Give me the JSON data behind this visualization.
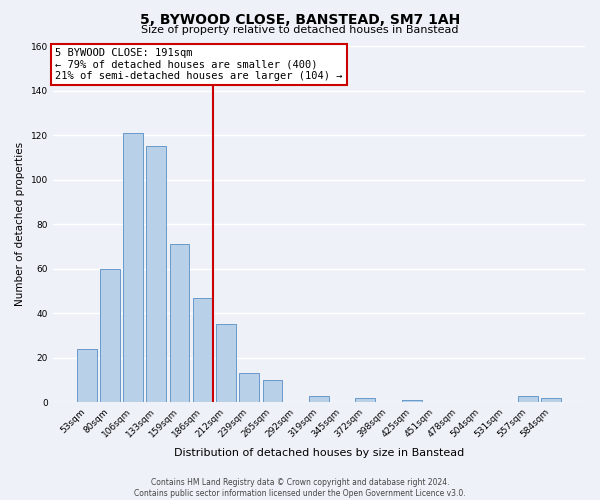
{
  "title": "5, BYWOOD CLOSE, BANSTEAD, SM7 1AH",
  "subtitle": "Size of property relative to detached houses in Banstead",
  "xlabel": "Distribution of detached houses by size in Banstead",
  "ylabel": "Number of detached properties",
  "bar_labels": [
    "53sqm",
    "80sqm",
    "106sqm",
    "133sqm",
    "159sqm",
    "186sqm",
    "212sqm",
    "239sqm",
    "265sqm",
    "292sqm",
    "319sqm",
    "345sqm",
    "372sqm",
    "398sqm",
    "425sqm",
    "451sqm",
    "478sqm",
    "504sqm",
    "531sqm",
    "557sqm",
    "584sqm"
  ],
  "bar_values": [
    24,
    60,
    121,
    115,
    71,
    47,
    35,
    13,
    10,
    0,
    3,
    0,
    2,
    0,
    1,
    0,
    0,
    0,
    0,
    3,
    2
  ],
  "bar_color": "#b8d0e8",
  "bar_edge_color": "#6699cc",
  "ylim": [
    0,
    160
  ],
  "yticks": [
    0,
    20,
    40,
    60,
    80,
    100,
    120,
    140,
    160
  ],
  "property_line_color": "#cc0000",
  "annotation_title": "5 BYWOOD CLOSE: 191sqm",
  "annotation_line1": "← 79% of detached houses are smaller (400)",
  "annotation_line2": "21% of semi-detached houses are larger (104) →",
  "annotation_box_color": "#ffffff",
  "annotation_box_edge": "#cc0000",
  "footer1": "Contains HM Land Registry data © Crown copyright and database right 2024.",
  "footer2": "Contains public sector information licensed under the Open Government Licence v3.0.",
  "background_color": "#eef2f8",
  "grid_color": "#ffffff",
  "title_fontsize": 10,
  "subtitle_fontsize": 8,
  "xlabel_fontsize": 8,
  "ylabel_fontsize": 7.5,
  "tick_fontsize": 6.5,
  "annot_fontsize": 7.5,
  "footer_fontsize": 5.5
}
